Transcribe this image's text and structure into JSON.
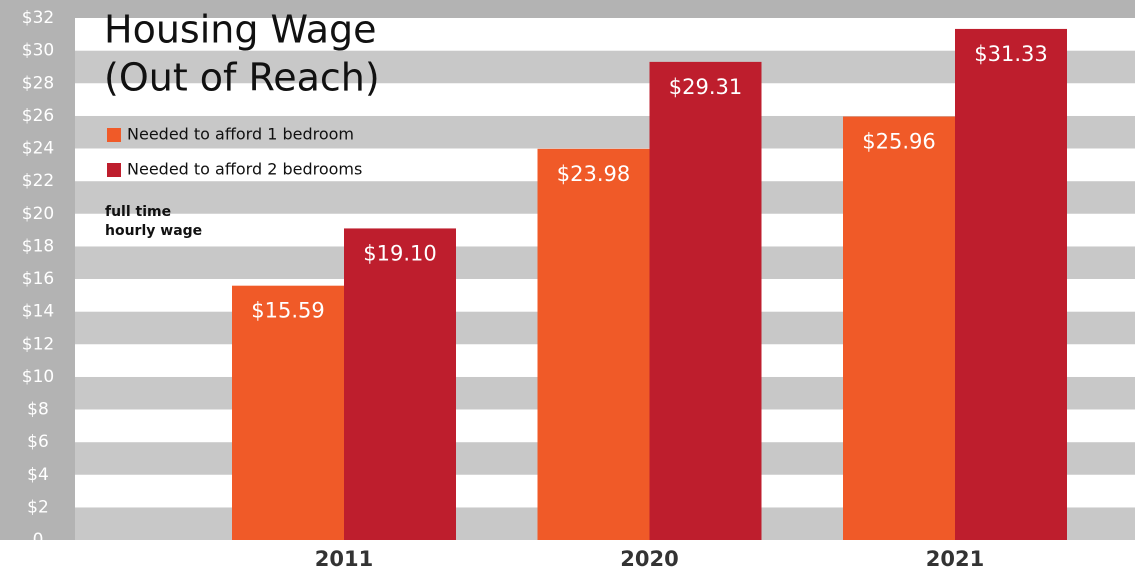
{
  "chart_data": {
    "type": "bar",
    "title": [
      "Housing Wage",
      "(Out of Reach)"
    ],
    "annotation": [
      "full time",
      "hourly wage"
    ],
    "categories": [
      "2011",
      "2020",
      "2021"
    ],
    "series": [
      {
        "name": "Needed to afford 1 bedroom",
        "color": "#f05a28",
        "values": [
          15.59,
          23.98,
          25.96
        ],
        "value_labels": [
          "$15.59",
          "$23.98",
          "$25.96"
        ]
      },
      {
        "name": "Needed to afford 2 bedrooms",
        "color": "#be1e2d",
        "values": [
          19.1,
          29.31,
          31.33
        ],
        "value_labels": [
          "$19.10",
          "$29.31",
          "$31.33"
        ]
      }
    ],
    "ylim": [
      0,
      32
    ],
    "yticks": [
      0,
      {
        "value": 2,
        "label": "$2"
      },
      {
        "value": 4,
        "label": "$4"
      },
      {
        "value": 6,
        "label": "$6"
      },
      {
        "value": 8,
        "label": "$8"
      },
      {
        "value": 10,
        "label": "$10"
      },
      {
        "value": 12,
        "label": "$12"
      },
      {
        "value": 14,
        "label": "$14"
      },
      {
        "value": 16,
        "label": "$16"
      },
      {
        "value": 18,
        "label": "$18"
      },
      {
        "value": 20,
        "label": "$20"
      },
      {
        "value": 22,
        "label": "$22"
      },
      {
        "value": 24,
        "label": "$24"
      },
      {
        "value": 26,
        "label": "$26"
      },
      {
        "value": 28,
        "label": "$28"
      },
      {
        "value": 30,
        "label": "$30"
      },
      {
        "value": 32,
        "label": "$32"
      }
    ],
    "grid": true
  }
}
